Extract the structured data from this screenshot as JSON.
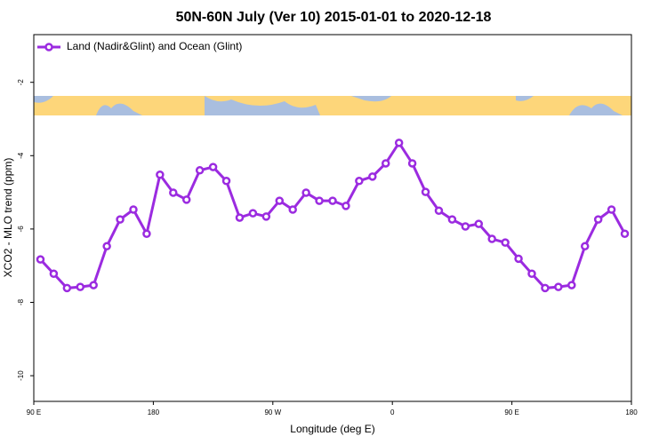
{
  "chart_data": {
    "type": "line",
    "title": "50N-60N July (Ver 10)   2015-01-01 to 2020-12-18",
    "xlabel": "Longitude (deg E)",
    "ylabel": "XCO2 - MLO trend (ppm)",
    "legend": "upper left",
    "xlim": [
      90,
      540
    ],
    "xticks": [
      {
        "value": 90,
        "label": "90 E"
      },
      180,
      {
        "value": 270,
        "label": "90 W"
      },
      {
        "value": 360,
        "label": "0"
      },
      {
        "value": 450,
        "label": "90 E"
      },
      {
        "value": 540,
        "label": "180"
      }
    ],
    "ylim": [
      -10.7,
      -0.7
    ],
    "yticks": [
      -10,
      -8,
      -6,
      -4,
      -2
    ],
    "x": [
      95,
      105,
      115,
      125,
      135,
      145,
      155,
      165,
      175,
      185,
      195,
      205,
      215,
      225,
      235,
      245,
      255,
      265,
      275,
      285,
      295,
      305,
      315,
      325,
      335,
      345,
      355,
      365,
      375,
      385,
      395,
      405,
      415,
      425,
      435,
      445,
      455,
      465,
      475,
      485,
      495,
      505,
      515,
      525,
      535
    ],
    "series": [
      {
        "name": "Land (Nadir&Glint) and Ocean (Glint)",
        "color": "#9b2be0",
        "values": [
          -6.83,
          -7.22,
          -7.61,
          -7.58,
          -7.53,
          -6.47,
          -5.74,
          -5.47,
          -6.13,
          -4.52,
          -5.01,
          -5.2,
          -4.4,
          -4.31,
          -4.69,
          -5.69,
          -5.57,
          -5.66,
          -5.23,
          -5.47,
          -5.01,
          -5.23,
          -5.23,
          -5.37,
          -4.69,
          -4.57,
          -4.21,
          -3.65,
          -4.21,
          -4.99,
          -5.5,
          -5.74,
          -5.93,
          -5.86,
          -6.27,
          -6.37,
          -6.81,
          -7.22,
          -7.61,
          -7.58,
          -7.53,
          -6.47,
          -5.74,
          -5.47,
          -6.13
        ]
      }
    ]
  }
}
